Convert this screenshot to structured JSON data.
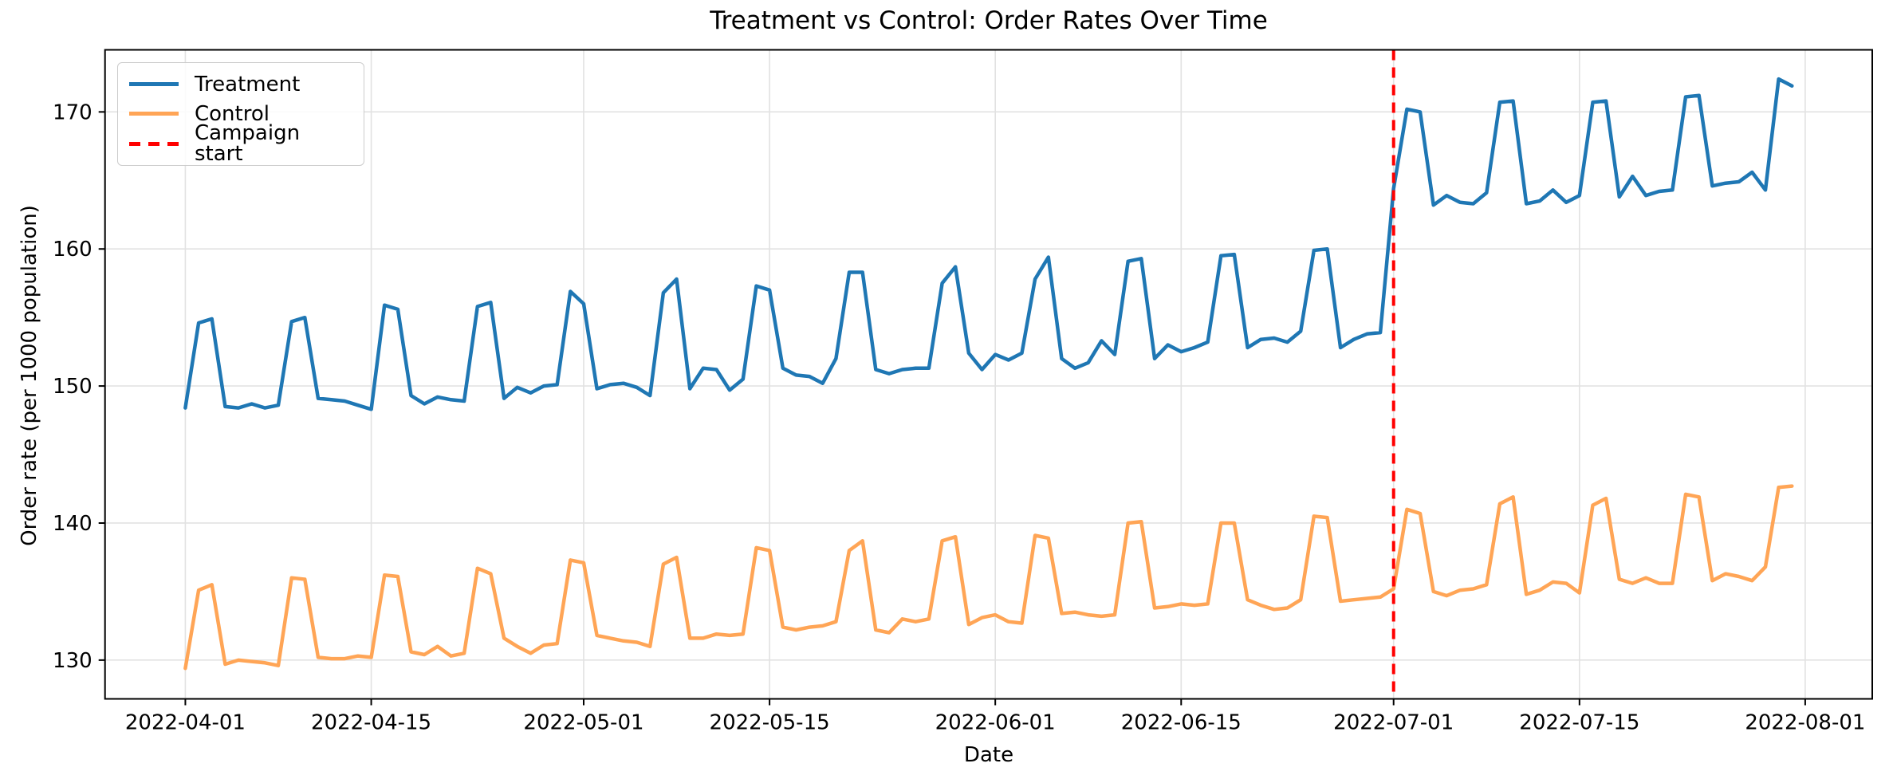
{
  "figure": {
    "title": "Treatment vs Control: Order Rates Over Time",
    "xlabel": "Date",
    "ylabel": "Order rate (per 1000 population)"
  },
  "legend": {
    "position": "upper left",
    "items": [
      {
        "label": "Treatment",
        "color": "#1f77b4",
        "style": "solid"
      },
      {
        "label": "Control",
        "color": "#ffa556",
        "style": "solid"
      },
      {
        "label": "Campaign start",
        "color": "#ff0000",
        "style": "dashed"
      }
    ]
  },
  "chart_data": {
    "type": "line",
    "title": "Treatment vs Control: Order Rates Over Time",
    "xlabel": "Date",
    "ylabel": "Order rate (per 1000 population)",
    "grid": true,
    "grid_color": "#e2e2e2",
    "background": "#ffffff",
    "ylim": [
      127.2,
      174.5
    ],
    "y_ticks": [
      130,
      140,
      150,
      160,
      170
    ],
    "x_ticks": [
      {
        "label": "2022-04-01",
        "day": 0
      },
      {
        "label": "2022-04-15",
        "day": 14
      },
      {
        "label": "2022-05-01",
        "day": 30
      },
      {
        "label": "2022-05-15",
        "day": 44
      },
      {
        "label": "2022-06-01",
        "day": 61
      },
      {
        "label": "2022-06-15",
        "day": 75
      },
      {
        "label": "2022-07-01",
        "day": 91
      },
      {
        "label": "2022-07-15",
        "day": 105
      },
      {
        "label": "2022-08-01",
        "day": 122
      }
    ],
    "campaign_start": "2022-07-01",
    "campaign_start_day": 91,
    "campaign_line": {
      "color": "#ff0000",
      "style": "dashed",
      "label": "Campaign start"
    },
    "frequency": "daily",
    "dates": [
      "2022-04-01",
      "2022-04-02",
      "2022-04-03",
      "2022-04-04",
      "2022-04-05",
      "2022-04-06",
      "2022-04-07",
      "2022-04-08",
      "2022-04-09",
      "2022-04-10",
      "2022-04-11",
      "2022-04-12",
      "2022-04-13",
      "2022-04-14",
      "2022-04-15",
      "2022-04-16",
      "2022-04-17",
      "2022-04-18",
      "2022-04-19",
      "2022-04-20",
      "2022-04-21",
      "2022-04-22",
      "2022-04-23",
      "2022-04-24",
      "2022-04-25",
      "2022-04-26",
      "2022-04-27",
      "2022-04-28",
      "2022-04-29",
      "2022-04-30",
      "2022-05-01",
      "2022-05-02",
      "2022-05-03",
      "2022-05-04",
      "2022-05-05",
      "2022-05-06",
      "2022-05-07",
      "2022-05-08",
      "2022-05-09",
      "2022-05-10",
      "2022-05-11",
      "2022-05-12",
      "2022-05-13",
      "2022-05-14",
      "2022-05-15",
      "2022-05-16",
      "2022-05-17",
      "2022-05-18",
      "2022-05-19",
      "2022-05-20",
      "2022-05-21",
      "2022-05-22",
      "2022-05-23",
      "2022-05-24",
      "2022-05-25",
      "2022-05-26",
      "2022-05-27",
      "2022-05-28",
      "2022-05-29",
      "2022-05-30",
      "2022-05-31",
      "2022-06-01",
      "2022-06-02",
      "2022-06-03",
      "2022-06-04",
      "2022-06-05",
      "2022-06-06",
      "2022-06-07",
      "2022-06-08",
      "2022-06-09",
      "2022-06-10",
      "2022-06-11",
      "2022-06-12",
      "2022-06-13",
      "2022-06-14",
      "2022-06-15",
      "2022-06-16",
      "2022-06-17",
      "2022-06-18",
      "2022-06-19",
      "2022-06-20",
      "2022-06-21",
      "2022-06-22",
      "2022-06-23",
      "2022-06-24",
      "2022-06-25",
      "2022-06-26",
      "2022-06-27",
      "2022-06-28",
      "2022-06-29",
      "2022-06-30",
      "2022-07-01",
      "2022-07-02",
      "2022-07-03",
      "2022-07-04",
      "2022-07-05",
      "2022-07-06",
      "2022-07-07",
      "2022-07-08",
      "2022-07-09",
      "2022-07-10",
      "2022-07-11",
      "2022-07-12",
      "2022-07-13",
      "2022-07-14",
      "2022-07-15",
      "2022-07-16",
      "2022-07-17",
      "2022-07-18",
      "2022-07-19",
      "2022-07-20",
      "2022-07-21",
      "2022-07-22",
      "2022-07-23",
      "2022-07-24",
      "2022-07-25",
      "2022-07-26",
      "2022-07-27",
      "2022-07-28",
      "2022-07-29",
      "2022-07-30",
      "2022-07-31"
    ],
    "series": [
      {
        "name": "Treatment",
        "color": "#1f77b4",
        "values": [
          148.4,
          154.6,
          154.9,
          148.5,
          148.4,
          148.7,
          148.4,
          148.6,
          154.7,
          155.0,
          149.1,
          149.0,
          148.9,
          148.6,
          148.3,
          155.9,
          155.6,
          149.3,
          148.7,
          149.2,
          149.0,
          148.9,
          155.8,
          156.1,
          149.1,
          149.9,
          149.5,
          150.0,
          150.1,
          156.9,
          156.0,
          149.8,
          150.1,
          150.2,
          149.9,
          149.3,
          156.8,
          157.8,
          149.8,
          151.3,
          151.2,
          149.7,
          150.5,
          157.3,
          157.0,
          151.3,
          150.8,
          150.7,
          150.2,
          152.0,
          158.3,
          158.3,
          151.2,
          150.9,
          151.2,
          151.3,
          151.3,
          157.5,
          158.7,
          152.4,
          151.2,
          152.3,
          151.9,
          152.4,
          157.8,
          159.4,
          152.0,
          151.3,
          151.7,
          153.3,
          152.3,
          159.1,
          159.3,
          152.0,
          153.0,
          152.5,
          152.8,
          153.2,
          159.5,
          159.6,
          152.8,
          153.4,
          153.5,
          153.2,
          154.0,
          159.9,
          160.0,
          152.8,
          153.4,
          153.8,
          153.9,
          164.4,
          170.2,
          170.0,
          163.2,
          163.9,
          163.4,
          163.3,
          164.1,
          170.7,
          170.8,
          163.3,
          163.5,
          164.3,
          163.4,
          163.9,
          170.7,
          170.8,
          163.8,
          165.3,
          163.9,
          164.2,
          164.3,
          171.1,
          171.2,
          164.6,
          164.8,
          164.9,
          165.6,
          164.3,
          172.4,
          171.9
        ]
      },
      {
        "name": "Control",
        "color": "#ffa556",
        "values": [
          129.4,
          135.1,
          135.5,
          129.7,
          130.0,
          129.9,
          129.8,
          129.6,
          136.0,
          135.9,
          130.2,
          130.1,
          130.1,
          130.3,
          130.2,
          136.2,
          136.1,
          130.6,
          130.4,
          131.0,
          130.3,
          130.5,
          136.7,
          136.3,
          131.6,
          131.0,
          130.5,
          131.1,
          131.2,
          137.3,
          137.1,
          131.8,
          131.6,
          131.4,
          131.3,
          131.0,
          137.0,
          137.5,
          131.6,
          131.6,
          131.9,
          131.8,
          131.9,
          138.2,
          138.0,
          132.4,
          132.2,
          132.4,
          132.5,
          132.8,
          138.0,
          138.7,
          132.2,
          132.0,
          133.0,
          132.8,
          133.0,
          138.7,
          139.0,
          132.6,
          133.1,
          133.3,
          132.8,
          132.7,
          139.1,
          138.9,
          133.4,
          133.5,
          133.3,
          133.2,
          133.3,
          140.0,
          140.1,
          133.8,
          133.9,
          134.1,
          134.0,
          134.1,
          140.0,
          140.0,
          134.4,
          134.0,
          133.7,
          133.8,
          134.4,
          140.5,
          140.4,
          134.3,
          134.4,
          134.5,
          134.6,
          135.2,
          141.0,
          140.7,
          135.0,
          134.7,
          135.1,
          135.2,
          135.5,
          141.4,
          141.9,
          134.8,
          135.1,
          135.7,
          135.6,
          134.9,
          141.3,
          141.8,
          135.9,
          135.6,
          136.0,
          135.6,
          135.6,
          142.1,
          141.9,
          135.8,
          136.3,
          136.1,
          135.8,
          136.8,
          142.6,
          142.7
        ]
      }
    ]
  }
}
